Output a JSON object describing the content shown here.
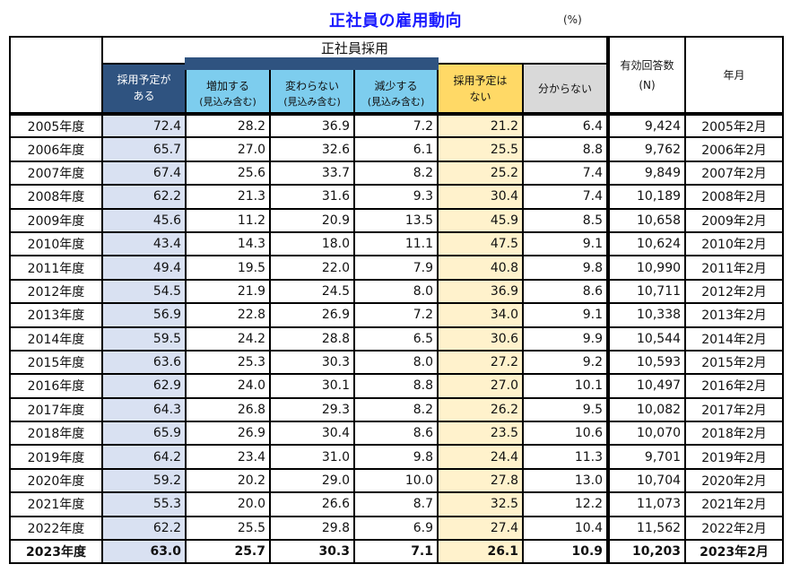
{
  "title": "正社員の雇用動向",
  "unit": "(%)",
  "header": {
    "group_label": "正社員採用",
    "columns": [
      {
        "line1": "採用予定が",
        "line2": "ある"
      },
      {
        "line1": "増加する",
        "line2": "(見込み含む)"
      },
      {
        "line1": "変わらない",
        "line2": "(見込み含む)"
      },
      {
        "line1": "減少する",
        "line2": "(見込み含む)"
      },
      {
        "line1": "採用予定は",
        "line2": "ない"
      },
      {
        "line1": "分からない",
        "line2": ""
      }
    ],
    "n_label": "有効回答数",
    "n_sub": "(N)",
    "date_label": "年月"
  },
  "colors": {
    "title": "#1a1aff",
    "col_have_plan_header": "#2f5380",
    "col_have_plan_cells": "#d9e1f2",
    "col_breakdown_header": "#7dcdee",
    "col_no_plan_header": "#ffd966",
    "col_no_plan_cells": "#fff2cc",
    "col_unknown_header": "#d9d9d9"
  },
  "rows": [
    {
      "year": "2005年度",
      "have_plan": "72.4",
      "increase": "28.2",
      "same": "36.9",
      "decrease": "7.2",
      "no_plan": "21.2",
      "unknown": "6.4",
      "n": "9,424",
      "date": "2005年2月"
    },
    {
      "year": "2006年度",
      "have_plan": "65.7",
      "increase": "27.0",
      "same": "32.6",
      "decrease": "6.1",
      "no_plan": "25.5",
      "unknown": "8.8",
      "n": "9,762",
      "date": "2006年2月"
    },
    {
      "year": "2007年度",
      "have_plan": "67.4",
      "increase": "25.6",
      "same": "33.7",
      "decrease": "8.2",
      "no_plan": "25.2",
      "unknown": "7.4",
      "n": "9,849",
      "date": "2007年2月"
    },
    {
      "year": "2008年度",
      "have_plan": "62.2",
      "increase": "21.3",
      "same": "31.6",
      "decrease": "9.3",
      "no_plan": "30.4",
      "unknown": "7.4",
      "n": "10,189",
      "date": "2008年2月"
    },
    {
      "year": "2009年度",
      "have_plan": "45.6",
      "increase": "11.2",
      "same": "20.9",
      "decrease": "13.5",
      "no_plan": "45.9",
      "unknown": "8.5",
      "n": "10,658",
      "date": "2009年2月"
    },
    {
      "year": "2010年度",
      "have_plan": "43.4",
      "increase": "14.3",
      "same": "18.0",
      "decrease": "11.1",
      "no_plan": "47.5",
      "unknown": "9.1",
      "n": "10,624",
      "date": "2010年2月"
    },
    {
      "year": "2011年度",
      "have_plan": "49.4",
      "increase": "19.5",
      "same": "22.0",
      "decrease": "7.9",
      "no_plan": "40.8",
      "unknown": "9.8",
      "n": "10,990",
      "date": "2011年2月"
    },
    {
      "year": "2012年度",
      "have_plan": "54.5",
      "increase": "21.9",
      "same": "24.5",
      "decrease": "8.0",
      "no_plan": "36.9",
      "unknown": "8.6",
      "n": "10,711",
      "date": "2012年2月"
    },
    {
      "year": "2013年度",
      "have_plan": "56.9",
      "increase": "22.8",
      "same": "26.9",
      "decrease": "7.2",
      "no_plan": "34.0",
      "unknown": "9.1",
      "n": "10,338",
      "date": "2013年2月"
    },
    {
      "year": "2014年度",
      "have_plan": "59.5",
      "increase": "24.2",
      "same": "28.8",
      "decrease": "6.5",
      "no_plan": "30.6",
      "unknown": "9.9",
      "n": "10,544",
      "date": "2014年2月"
    },
    {
      "year": "2015年度",
      "have_plan": "63.6",
      "increase": "25.3",
      "same": "30.3",
      "decrease": "8.0",
      "no_plan": "27.2",
      "unknown": "9.2",
      "n": "10,593",
      "date": "2015年2月"
    },
    {
      "year": "2016年度",
      "have_plan": "62.9",
      "increase": "24.0",
      "same": "30.1",
      "decrease": "8.8",
      "no_plan": "27.0",
      "unknown": "10.1",
      "n": "10,497",
      "date": "2016年2月"
    },
    {
      "year": "2017年度",
      "have_plan": "64.3",
      "increase": "26.8",
      "same": "29.3",
      "decrease": "8.2",
      "no_plan": "26.2",
      "unknown": "9.5",
      "n": "10,082",
      "date": "2017年2月"
    },
    {
      "year": "2018年度",
      "have_plan": "65.9",
      "increase": "26.9",
      "same": "30.4",
      "decrease": "8.6",
      "no_plan": "23.5",
      "unknown": "10.6",
      "n": "10,070",
      "date": "2018年2月"
    },
    {
      "year": "2019年度",
      "have_plan": "64.2",
      "increase": "23.4",
      "same": "31.0",
      "decrease": "9.8",
      "no_plan": "24.4",
      "unknown": "11.3",
      "n": "9,701",
      "date": "2019年2月"
    },
    {
      "year": "2020年度",
      "have_plan": "59.2",
      "increase": "20.2",
      "same": "29.0",
      "decrease": "10.0",
      "no_plan": "27.8",
      "unknown": "13.0",
      "n": "10,704",
      "date": "2020年2月"
    },
    {
      "year": "2021年度",
      "have_plan": "55.3",
      "increase": "20.0",
      "same": "26.6",
      "decrease": "8.7",
      "no_plan": "32.5",
      "unknown": "12.2",
      "n": "11,073",
      "date": "2021年2月"
    },
    {
      "year": "2022年度",
      "have_plan": "62.2",
      "increase": "25.5",
      "same": "29.8",
      "decrease": "6.9",
      "no_plan": "27.4",
      "unknown": "10.4",
      "n": "11,562",
      "date": "2022年2月"
    },
    {
      "year": "2023年度",
      "have_plan": "63.0",
      "increase": "25.7",
      "same": "30.3",
      "decrease": "7.1",
      "no_plan": "26.1",
      "unknown": "10.9",
      "n": "10,203",
      "date": "2023年2月",
      "bold": true
    }
  ]
}
